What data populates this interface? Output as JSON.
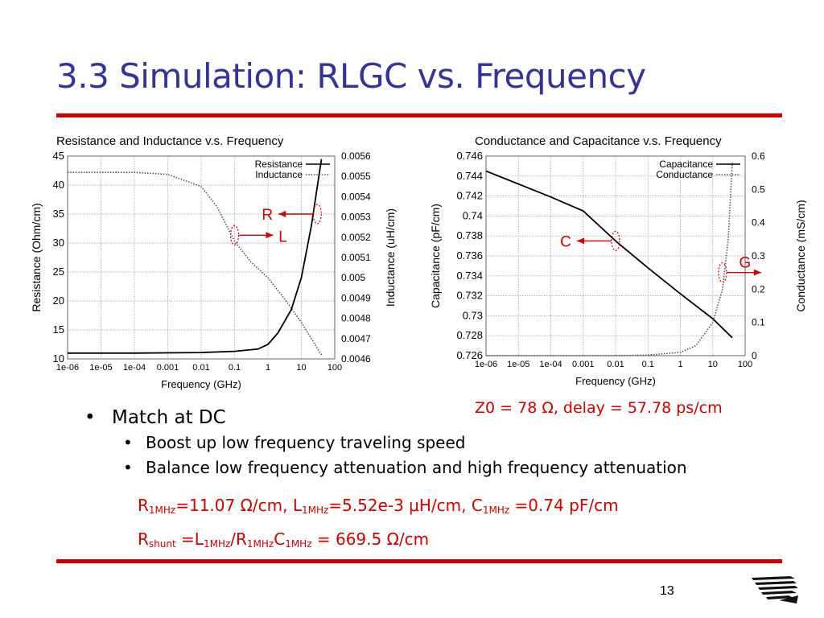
{
  "slide": {
    "title": "3.3 Simulation: RLGC vs. Frequency",
    "page_number": "13",
    "result_text": "Z0 = 78 Ω, delay = 57.78 ps/cm",
    "bullets": {
      "main": "Match at DC",
      "sub1": "Boost up low frequency traveling speed",
      "sub2": "Balance low frequency attenuation and high frequency attenuation"
    },
    "formula1": {
      "r_sym": "R",
      "r_sub": "1MHz",
      "r_val": "=11.07 Ω/cm, ",
      "l_sym": "L",
      "l_sub": "1MHz",
      "l_val": "=5.52e-3 μH/cm, ",
      "c_sym": "C",
      "c_sub": "1MHz",
      "c_val": " =0.74 pF/cm"
    },
    "formula2": {
      "rs_sym": "R",
      "rs_sub": "shunt",
      "eq": " =L",
      "l_sub": "1MHz",
      "slash": "/R",
      "r_sub": "1MHz",
      "c_sym": "C",
      "c_sub": "1MHz",
      "val": " = 669.5 Ω/cm"
    },
    "colors": {
      "title": "#333399",
      "accent_red": "#cc0000",
      "rule": "#cc0000"
    },
    "logo_icon": "striped-wing-logo-icon"
  },
  "chart_data": [
    {
      "type": "line",
      "title": "Resistance and Inductance v.s. Frequency",
      "xlabel": "Frequency (GHz)",
      "ylabel": "Resistance (Ohm/cm)",
      "y2label": "Inductance (uH/cm)",
      "x_scale": "log",
      "x_ticks": [
        "1e-06",
        "1e-05",
        "1e-04",
        "0.001",
        "0.01",
        "0.1",
        "1",
        "10",
        "100"
      ],
      "y_ticks": [
        "10",
        "15",
        "20",
        "25",
        "30",
        "35",
        "40",
        "45"
      ],
      "y2_ticks": [
        "0.0046",
        "0.0047",
        "0.0048",
        "0.0049",
        "0.005",
        "0.0051",
        "0.0052",
        "0.0053",
        "0.0054",
        "0.0055",
        "0.0056"
      ],
      "xlim": [
        1e-06,
        100
      ],
      "ylim": [
        10,
        45
      ],
      "y2lim": [
        0.0046,
        0.0056
      ],
      "grid": true,
      "legend": "top-right",
      "series": [
        {
          "name": "Resistance",
          "axis": "left",
          "style": "solid",
          "x": [
            1e-06,
            0.0001,
            0.01,
            0.1,
            0.5,
            1,
            2,
            5,
            10,
            20,
            40
          ],
          "y": [
            11.0,
            11.0,
            11.1,
            11.3,
            11.7,
            12.5,
            14.5,
            18.5,
            24.0,
            33.0,
            44.5
          ]
        },
        {
          "name": "Inductance",
          "axis": "right",
          "style": "dotted",
          "x": [
            1e-06,
            0.0001,
            0.001,
            0.01,
            0.03,
            0.1,
            0.3,
            1,
            3,
            10,
            40
          ],
          "y": [
            0.00552,
            0.00552,
            0.00551,
            0.00545,
            0.00535,
            0.00518,
            0.00508,
            0.005,
            0.0049,
            0.00478,
            0.00462
          ]
        }
      ],
      "annotations": [
        {
          "label": "R",
          "color": "#cc0000",
          "target_series": "Resistance",
          "x": 30,
          "y": 35
        },
        {
          "label": "L",
          "color": "#cc0000",
          "target_series": "Inductance",
          "x": 0.1,
          "y": 0.00521
        }
      ]
    },
    {
      "type": "line",
      "title": "Conductance and Capacitance v.s. Frequency",
      "xlabel": "Frequency (GHz)",
      "ylabel": "Capacitance (pF/cm)",
      "y2label": "Conductance (mS/cm)",
      "x_scale": "log",
      "x_ticks": [
        "1e-06",
        "1e-05",
        "1e-04",
        "0.001",
        "0.01",
        "0.1",
        "1",
        "10",
        "100"
      ],
      "y_ticks": [
        "0.726",
        "0.728",
        "0.73",
        "0.732",
        "0.734",
        "0.736",
        "0.738",
        "0.74",
        "0.742",
        "0.744",
        "0.746"
      ],
      "y2_ticks": [
        "0",
        "0.1",
        "0.2",
        "0.3",
        "0.4",
        "0.5",
        "0.6"
      ],
      "xlim": [
        1e-06,
        100
      ],
      "ylim": [
        0.726,
        0.746
      ],
      "y2lim": [
        0,
        0.6
      ],
      "grid": true,
      "legend": "top-right",
      "series": [
        {
          "name": "Capacitance",
          "axis": "left",
          "style": "solid",
          "x": [
            1e-06,
            1e-05,
            0.0001,
            0.001,
            0.01,
            0.1,
            1,
            10,
            40
          ],
          "y": [
            0.7445,
            0.7432,
            0.7419,
            0.7405,
            0.7375,
            0.7348,
            0.7322,
            0.7297,
            0.7278
          ]
        },
        {
          "name": "Conductance",
          "axis": "right",
          "style": "dotted",
          "x": [
            1e-06,
            0.01,
            0.1,
            1,
            3,
            10,
            20,
            30,
            40
          ],
          "y": [
            0.0,
            0.0,
            0.002,
            0.01,
            0.03,
            0.1,
            0.2,
            0.35,
            0.58
          ]
        }
      ],
      "annotations": [
        {
          "label": "C",
          "color": "#cc0000",
          "target_series": "Capacitance",
          "x": 0.01,
          "y": 0.7375
        },
        {
          "label": "G",
          "color": "#cc0000",
          "target_series": "Conductance",
          "x": 20,
          "y": 0.25
        }
      ]
    }
  ]
}
